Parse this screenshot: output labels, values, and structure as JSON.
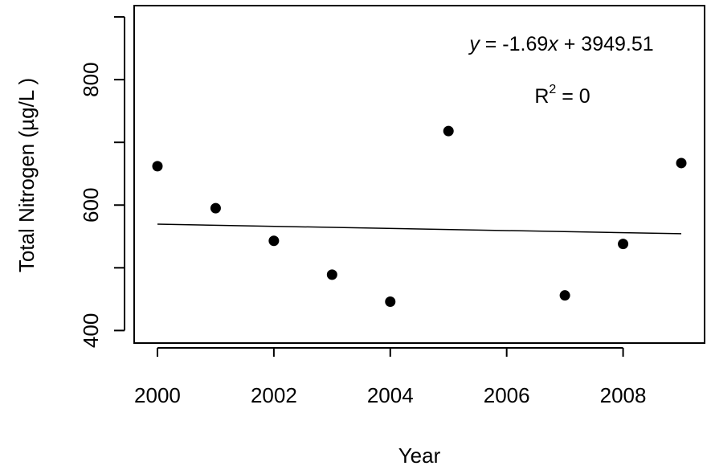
{
  "chart_data": {
    "type": "scatter",
    "xlabel": "Year",
    "ylabel": "Total Nitrogen (µg/L )",
    "x": [
      2000,
      2001,
      2002,
      2003,
      2004,
      2005,
      2007,
      2008,
      2009
    ],
    "y": [
      662,
      595,
      543,
      489,
      446,
      718,
      456,
      538,
      667
    ],
    "xlim": [
      1999.6,
      2009.4
    ],
    "ylim": [
      380,
      918
    ],
    "xticks": [
      2000,
      2002,
      2004,
      2006,
      2008
    ],
    "xtick_labels": [
      "2000",
      "2002",
      "2004",
      "2006",
      "2008"
    ],
    "yticks": [
      400,
      600,
      800
    ],
    "ytick_labels": [
      "400",
      "600",
      "800"
    ],
    "extra_yticks": [
      500,
      700,
      900
    ],
    "fit_line": {
      "x": [
        2000,
        2009
      ],
      "slope": -1.69,
      "intercept": 3949.51
    },
    "annotations": {
      "equation_y": "y",
      "equation_rest": " = -1.69",
      "equation_x": "x",
      "equation_tail": " + 3949.51",
      "r2_label": "R",
      "r2_sup": "2",
      "r2_value": " = 0"
    },
    "grid": false,
    "legend": "none",
    "colors": {
      "points": "#000000",
      "line": "#000000",
      "axes": "#000000"
    }
  }
}
